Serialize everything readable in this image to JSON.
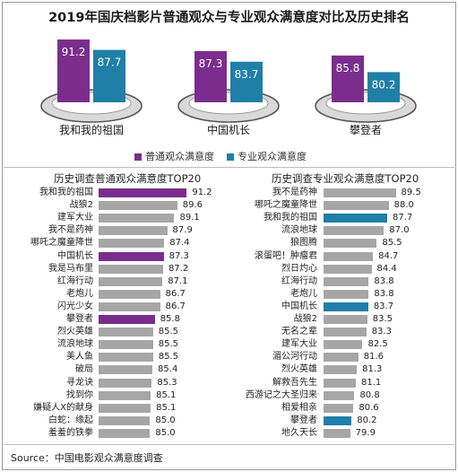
{
  "title": "2019年国庆档影片普通观众与专业观众满意度对比及历史排名",
  "colors": {
    "normal": "#7b2d8e",
    "pro": "#1f7fa7",
    "gray": "#a6a6a6"
  },
  "chart_data": [
    {
      "type": "bar",
      "categories": [
        "我和我的祖国",
        "中国机长",
        "攀登者"
      ],
      "series": [
        {
          "name": "普通观众满意度",
          "values": [
            91.2,
            87.3,
            85.8
          ]
        },
        {
          "name": "专业观众满意度",
          "values": [
            87.7,
            83.7,
            80.2
          ]
        }
      ],
      "legend": "bottom"
    },
    {
      "type": "bar",
      "title": "历史调查普通观众满意度TOP20",
      "orientation": "horizontal",
      "categories": [
        "我和我的祖国",
        "战狼2",
        "建军大业",
        "我不是药神",
        "哪吒之魔童降世",
        "中国机长",
        "我是马布里",
        "红海行动",
        "老炮儿",
        "闪光少女",
        "攀登者",
        "烈火英雄",
        "流浪地球",
        "美人鱼",
        "破局",
        "寻龙诀",
        "找到你",
        "嫌疑人X的献身",
        "白蛇：缘起",
        "羞羞的铁拳"
      ],
      "values": [
        91.2,
        89.6,
        89.1,
        87.9,
        87.4,
        87.3,
        87.2,
        87.1,
        86.7,
        86.7,
        85.8,
        85.5,
        85.5,
        85.5,
        85.4,
        85.3,
        85.1,
        85.1,
        85.0,
        85.0
      ],
      "highlight": [
        "我和我的祖国",
        "中国机长",
        "攀登者"
      ]
    },
    {
      "type": "bar",
      "title": "历史调查专业观众满意度TOP20",
      "orientation": "horizontal",
      "categories": [
        "我不是药神",
        "哪吒之魔童降世",
        "我和我的祖国",
        "流浪地球",
        "狼图腾",
        "滚蛋吧！肿瘤君",
        "烈日灼心",
        "红海行动",
        "老炮儿",
        "中国机长",
        "战狼2",
        "无名之辈",
        "建军大业",
        "湄公河行动",
        "烈火英雄",
        "解救吾先生",
        "西游记之大圣归来",
        "相爱相亲",
        "攀登者",
        "地久天长"
      ],
      "values": [
        89.5,
        88.0,
        87.7,
        87.0,
        85.5,
        84.7,
        84.4,
        83.8,
        83.8,
        83.7,
        83.5,
        83.3,
        82.5,
        81.6,
        81.3,
        81.1,
        80.8,
        80.6,
        80.2,
        79.9
      ],
      "highlight": [
        "我和我的祖国",
        "中国机长",
        "攀登者"
      ]
    }
  ],
  "source": "Source：中国电影观众满意度调查"
}
